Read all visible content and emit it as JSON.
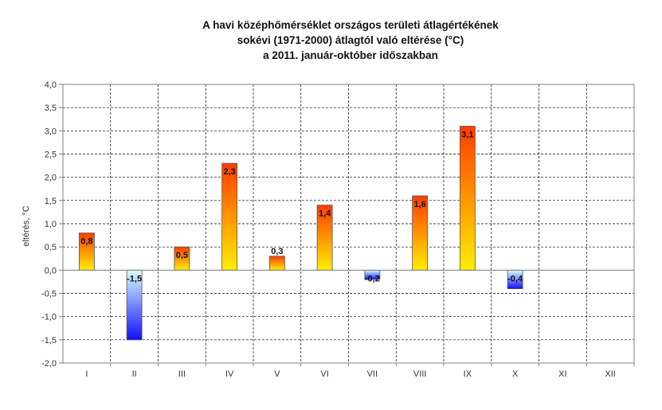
{
  "chart_data": {
    "type": "bar",
    "title_lines": [
      "A havi középhőmérséklet országos területi átlagértékének",
      "sokévi (1971-2000) átlagtól való eltérése (°C)",
      "a 2011. január-október időszakban"
    ],
    "ylabel": "eltérés, °C",
    "xlabel": "",
    "ylim": [
      -2.0,
      4.0
    ],
    "ytick_step": 0.5,
    "ytick_labels": [
      "4,0",
      "3,5",
      "3,0",
      "2,5",
      "2,0",
      "1,5",
      "1,0",
      "0,5",
      "0,0",
      "-0,5",
      "-1,0",
      "-1,5",
      "-2,0"
    ],
    "categories": [
      "I",
      "II",
      "III",
      "IV",
      "V",
      "VI",
      "VII",
      "VIII",
      "IX",
      "X",
      "XI",
      "XII"
    ],
    "values": [
      0.8,
      -1.5,
      0.5,
      2.3,
      0.3,
      1.4,
      -0.2,
      1.6,
      3.1,
      -0.4,
      null,
      null
    ],
    "value_labels": [
      "0,8",
      "-1,5",
      "0,5",
      "2,3",
      "0,3",
      "1,4",
      "-0,2",
      "1,6",
      "3,1",
      "-0,4",
      "",
      ""
    ],
    "grid": true,
    "legend": "none",
    "colors": {
      "positive_top": "#ff3c00",
      "positive_bottom": "#ffee00",
      "negative_top": "#d8ffff",
      "negative_bottom": "#1010ff",
      "grid": "#000000",
      "axis": "#808080",
      "text": "#333333"
    }
  }
}
